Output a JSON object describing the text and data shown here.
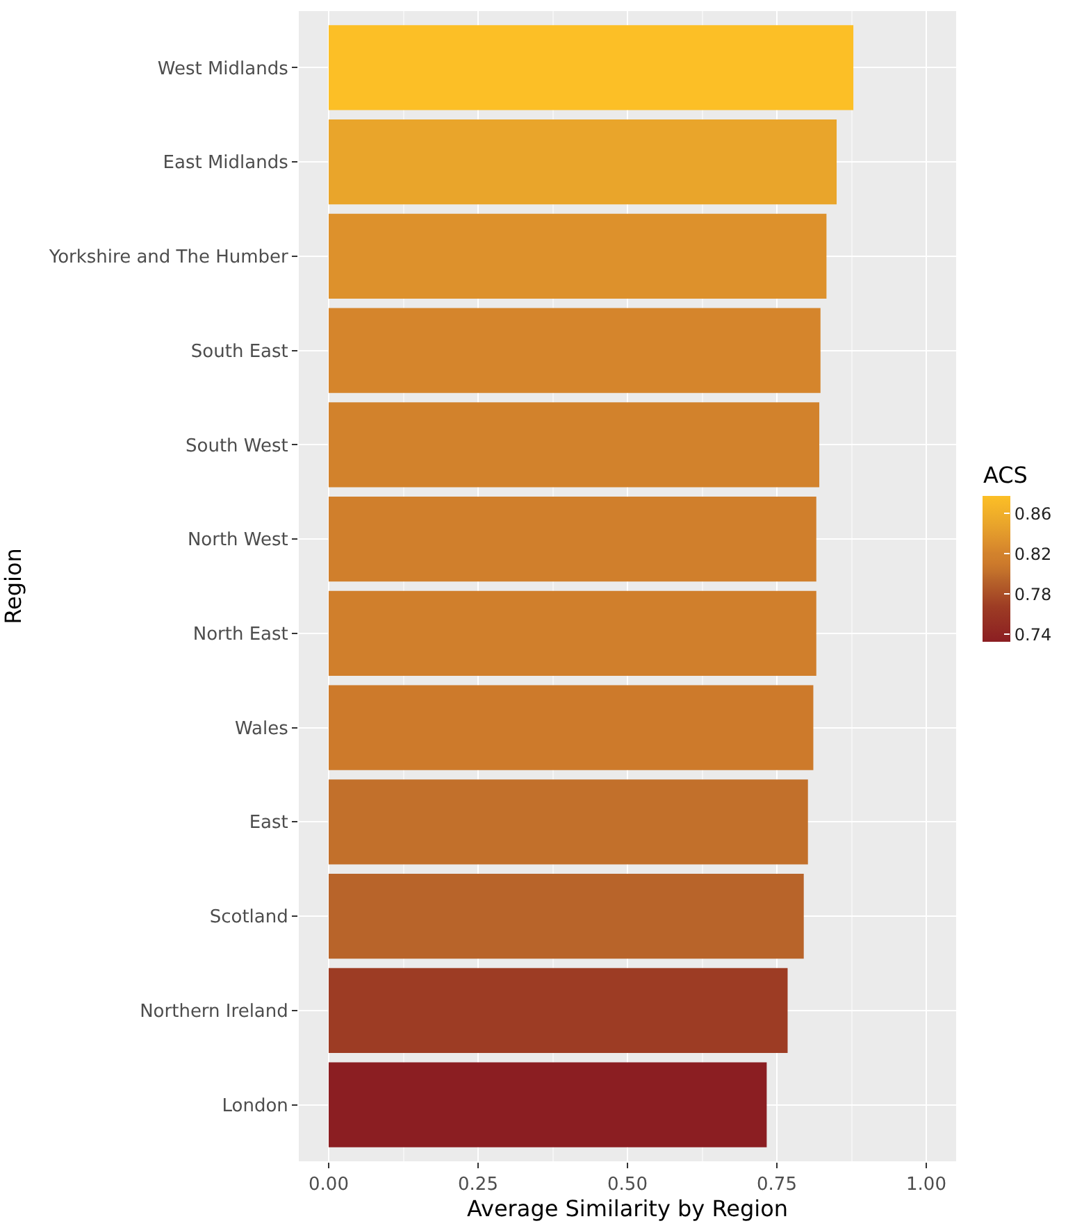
{
  "chart_data": {
    "type": "bar",
    "orientation": "horizontal",
    "xlabel": "Average Similarity by Region",
    "ylabel": "Region",
    "clabel": "ACS",
    "categories": [
      "West Midlands",
      "East Midlands",
      "Yorkshire and The Humber",
      "South East",
      "South West",
      "North West",
      "North East",
      "Wales",
      "East",
      "Scotland",
      "Northern Ireland",
      "London"
    ],
    "values": [
      0.878,
      0.85,
      0.833,
      0.823,
      0.821,
      0.816,
      0.816,
      0.811,
      0.802,
      0.795,
      0.768,
      0.733
    ],
    "colors": [
      "#fcbf26",
      "#e9a52b",
      "#dd912c",
      "#d5852c",
      "#d2822c",
      "#d07f2c",
      "#d07f2c",
      "#cd7a2b",
      "#c2702b",
      "#b8642a",
      "#9d3c24",
      "#8b1e22"
    ],
    "xlim": [
      -0.05,
      1.05
    ],
    "xticks": [
      {
        "value": 0,
        "label": "0.00"
      },
      0.25,
      {
        "value": 0.5,
        "label": "0.50"
      },
      0.75,
      {
        "value": 1,
        "label": "1.00"
      }
    ],
    "clim": [
      0.733,
      0.878
    ],
    "cticks": [
      0.74,
      0.78,
      0.82,
      0.86
    ],
    "grid": true
  }
}
